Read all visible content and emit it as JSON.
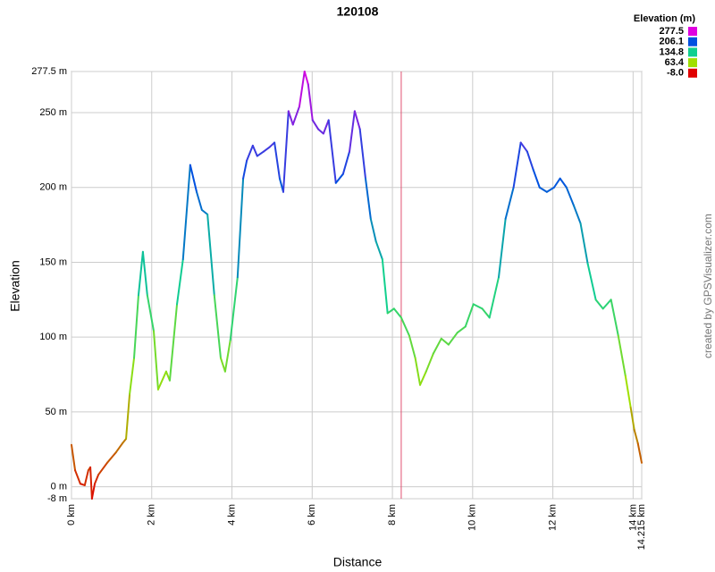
{
  "chart_data": {
    "type": "line",
    "title": "120108",
    "x_label": "Distance",
    "y_label": "Elevation",
    "credit": "created by GPSVisualizer.com",
    "legend_title": "Elevation (m)",
    "legend_values": [
      277.5,
      206.1,
      134.8,
      63.4,
      {
        "value": -8,
        "label": "-8.0"
      }
    ],
    "legend_colors": [
      "#e000e0",
      "#0050e0",
      "#10d090",
      "#a0e000",
      "#e00000"
    ],
    "xlim": [
      0,
      14.215
    ],
    "ylim": [
      -8,
      277.5
    ],
    "xticks": [
      {
        "value": 0,
        "label": "0 km"
      },
      {
        "value": 2,
        "label": "2 km"
      },
      {
        "value": 4,
        "label": "4 km"
      },
      {
        "value": 6,
        "label": "6 km"
      },
      {
        "value": 8,
        "label": "8 km"
      },
      {
        "value": 10,
        "label": "10 km"
      },
      {
        "value": 12,
        "label": "12 km"
      },
      {
        "value": 14,
        "label": "14 km"
      },
      {
        "value": 14.215,
        "label": "14.215 km"
      }
    ],
    "yticks": [
      {
        "value": -8,
        "label": "-8 m"
      },
      {
        "value": 0,
        "label": "0 m"
      },
      {
        "value": 50,
        "label": "50 m"
      },
      {
        "value": 100,
        "label": "100 m"
      },
      {
        "value": 150,
        "label": "150 m"
      },
      {
        "value": 200,
        "label": "200 m"
      },
      {
        "value": 250,
        "label": "250 m"
      },
      {
        "value": 277.5,
        "label": "277.5 m"
      }
    ],
    "grid": true,
    "marker_x": 8.22,
    "marker_color": "#e05070",
    "x": [
      0,
      0.09,
      0.22,
      0.33,
      0.42,
      0.47,
      0.51,
      0.58,
      0.67,
      0.89,
      1.11,
      1.27,
      1.36,
      1.45,
      1.56,
      1.67,
      1.78,
      1.89,
      2.05,
      2.16,
      2.36,
      2.45,
      2.63,
      2.78,
      2.96,
      3.12,
      3.25,
      3.39,
      3.56,
      3.72,
      3.83,
      3.96,
      4.14,
      4.28,
      4.37,
      4.52,
      4.63,
      4.79,
      4.94,
      5.06,
      5.19,
      5.28,
      5.41,
      5.52,
      5.68,
      5.81,
      5.9,
      6.01,
      6.15,
      6.28,
      6.41,
      6.59,
      6.77,
      6.93,
      7.06,
      7.19,
      7.33,
      7.46,
      7.59,
      7.75,
      7.88,
      8.04,
      8.22,
      8.42,
      8.57,
      8.69,
      8.84,
      9.02,
      9.22,
      9.4,
      9.62,
      9.82,
      10.02,
      10.24,
      10.42,
      10.65,
      10.82,
      11.02,
      11.2,
      11.36,
      11.51,
      11.67,
      11.85,
      12.03,
      12.18,
      12.34,
      12.52,
      12.69,
      12.87,
      13.07,
      13.25,
      13.45,
      13.63,
      13.81,
      13.94,
      14.03,
      14.12,
      14.215
    ],
    "values": [
      28,
      11,
      2,
      1,
      11,
      13,
      -8,
      2,
      8,
      16,
      23,
      29,
      32,
      62,
      86,
      128,
      157,
      128,
      104,
      65,
      77,
      71,
      122,
      152,
      215,
      197,
      185,
      182,
      128,
      86,
      77,
      98,
      140,
      206,
      218,
      228,
      221,
      224,
      227,
      230,
      206,
      197,
      251,
      242,
      254,
      277.5,
      269,
      245,
      239,
      236,
      245,
      203,
      209,
      224,
      251,
      239,
      206,
      179,
      164,
      152,
      116,
      119,
      113,
      101,
      86,
      68,
      77,
      89,
      99,
      95,
      103,
      107,
      122,
      119,
      113,
      140,
      179,
      200,
      230,
      224,
      212,
      200,
      197,
      200,
      206,
      200,
      188,
      176,
      149,
      125,
      119,
      125,
      101,
      74,
      53,
      38,
      29,
      16
    ]
  }
}
